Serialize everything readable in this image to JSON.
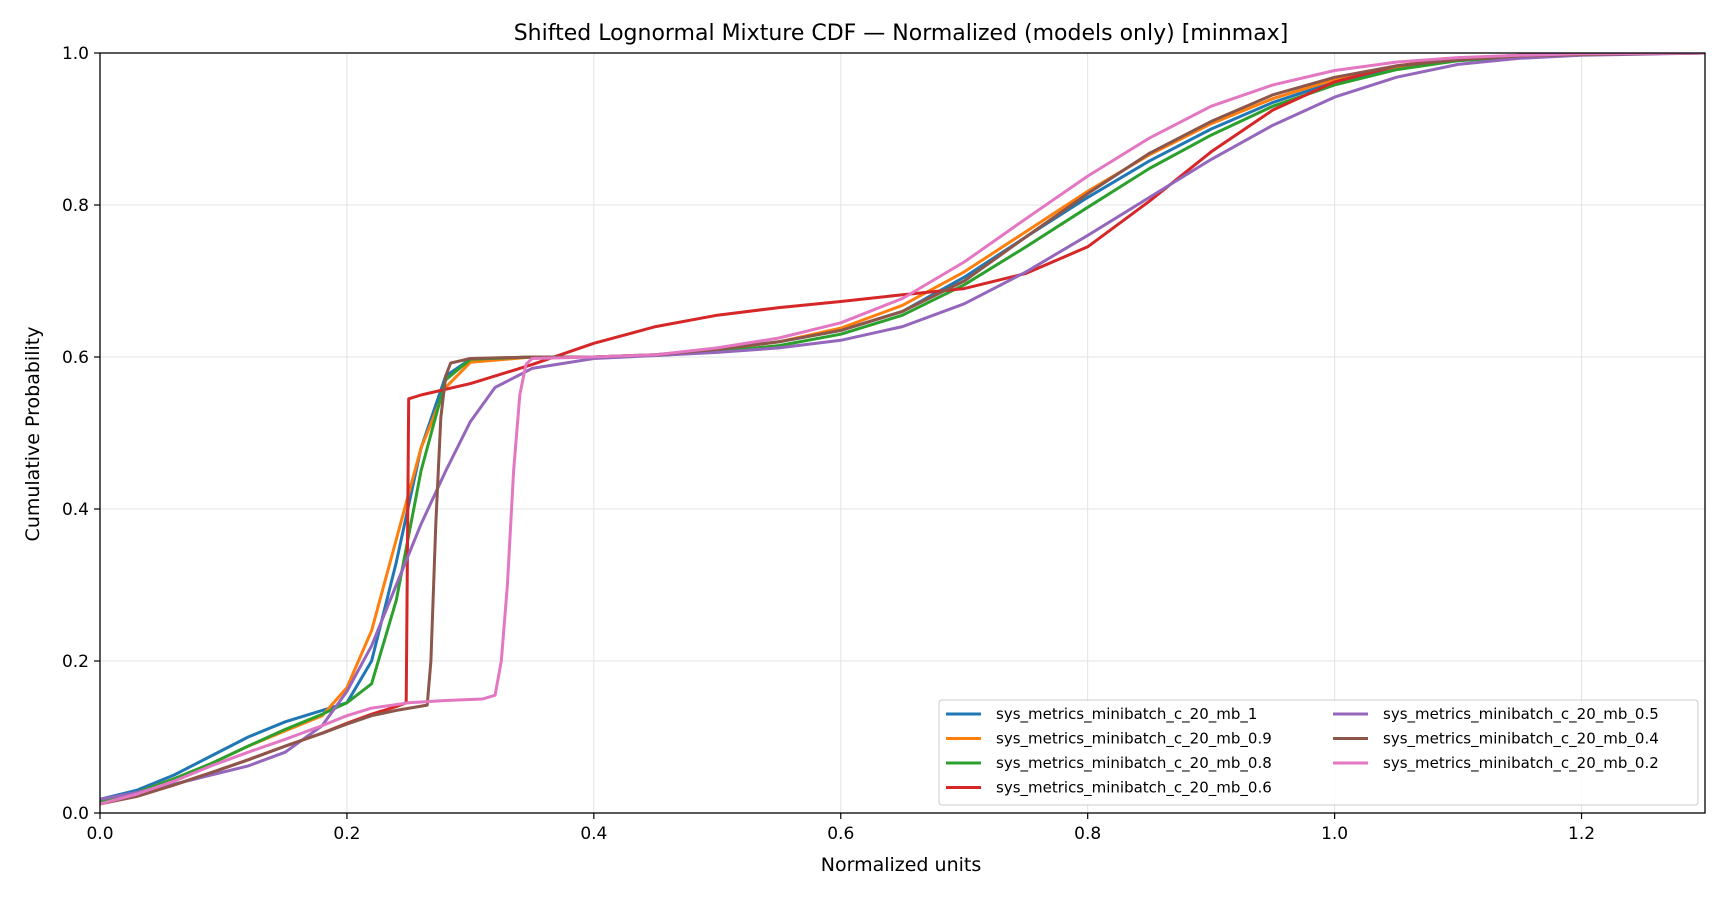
{
  "chart_data": {
    "type": "line",
    "title": "Shifted Lognormal Mixture CDF — Normalized (models only) [minmax]",
    "xlabel": "Normalized units",
    "ylabel": "Cumulative Probability",
    "xlim": [
      0.0,
      1.3
    ],
    "ylim": [
      0.0,
      1.0
    ],
    "xticks": [
      "0.0",
      "0.2",
      "0.4",
      "0.6",
      "0.8",
      "1.0",
      "1.2"
    ],
    "yticks": [
      "0.0",
      "0.2",
      "0.4",
      "0.6",
      "0.8",
      "1.0"
    ],
    "grid": true,
    "legend_position": "lower-right",
    "legend_columns": 2,
    "series": [
      {
        "name": "sys_metrics_minibatch_c_20_mb_1",
        "color": "#1f77b4",
        "points": [
          [
            0.0,
            0.018
          ],
          [
            0.03,
            0.03
          ],
          [
            0.06,
            0.05
          ],
          [
            0.09,
            0.075
          ],
          [
            0.12,
            0.1
          ],
          [
            0.15,
            0.12
          ],
          [
            0.18,
            0.135
          ],
          [
            0.2,
            0.145
          ],
          [
            0.22,
            0.2
          ],
          [
            0.24,
            0.33
          ],
          [
            0.26,
            0.48
          ],
          [
            0.28,
            0.575
          ],
          [
            0.3,
            0.597
          ],
          [
            0.35,
            0.6
          ],
          [
            0.4,
            0.6
          ],
          [
            0.45,
            0.603
          ],
          [
            0.5,
            0.61
          ],
          [
            0.55,
            0.62
          ],
          [
            0.6,
            0.635
          ],
          [
            0.65,
            0.66
          ],
          [
            0.7,
            0.705
          ],
          [
            0.75,
            0.758
          ],
          [
            0.8,
            0.81
          ],
          [
            0.85,
            0.858
          ],
          [
            0.9,
            0.9
          ],
          [
            0.95,
            0.935
          ],
          [
            1.0,
            0.962
          ],
          [
            1.05,
            0.98
          ],
          [
            1.1,
            0.99
          ],
          [
            1.15,
            0.995
          ],
          [
            1.2,
            0.998
          ],
          [
            1.3,
            1.0
          ]
        ]
      },
      {
        "name": "sys_metrics_minibatch_c_20_mb_0.9",
        "color": "#ff7f0e",
        "points": [
          [
            0.0,
            0.015
          ],
          [
            0.03,
            0.027
          ],
          [
            0.06,
            0.045
          ],
          [
            0.09,
            0.065
          ],
          [
            0.12,
            0.088
          ],
          [
            0.15,
            0.108
          ],
          [
            0.18,
            0.128
          ],
          [
            0.2,
            0.165
          ],
          [
            0.22,
            0.24
          ],
          [
            0.24,
            0.36
          ],
          [
            0.26,
            0.48
          ],
          [
            0.28,
            0.56
          ],
          [
            0.3,
            0.593
          ],
          [
            0.35,
            0.6
          ],
          [
            0.4,
            0.6
          ],
          [
            0.45,
            0.603
          ],
          [
            0.5,
            0.61
          ],
          [
            0.55,
            0.62
          ],
          [
            0.6,
            0.638
          ],
          [
            0.65,
            0.668
          ],
          [
            0.7,
            0.712
          ],
          [
            0.75,
            0.765
          ],
          [
            0.8,
            0.818
          ],
          [
            0.85,
            0.866
          ],
          [
            0.9,
            0.907
          ],
          [
            0.95,
            0.94
          ],
          [
            1.0,
            0.965
          ],
          [
            1.05,
            0.982
          ],
          [
            1.1,
            0.991
          ],
          [
            1.15,
            0.996
          ],
          [
            1.2,
            0.998
          ],
          [
            1.3,
            1.0
          ]
        ]
      },
      {
        "name": "sys_metrics_minibatch_c_20_mb_0.8",
        "color": "#2ca02c",
        "points": [
          [
            0.0,
            0.015
          ],
          [
            0.03,
            0.027
          ],
          [
            0.06,
            0.045
          ],
          [
            0.09,
            0.065
          ],
          [
            0.12,
            0.088
          ],
          [
            0.15,
            0.11
          ],
          [
            0.18,
            0.13
          ],
          [
            0.2,
            0.145
          ],
          [
            0.22,
            0.17
          ],
          [
            0.24,
            0.28
          ],
          [
            0.26,
            0.45
          ],
          [
            0.28,
            0.57
          ],
          [
            0.3,
            0.597
          ],
          [
            0.35,
            0.6
          ],
          [
            0.4,
            0.6
          ],
          [
            0.45,
            0.602
          ],
          [
            0.5,
            0.607
          ],
          [
            0.55,
            0.615
          ],
          [
            0.6,
            0.63
          ],
          [
            0.65,
            0.655
          ],
          [
            0.7,
            0.695
          ],
          [
            0.75,
            0.745
          ],
          [
            0.8,
            0.797
          ],
          [
            0.85,
            0.848
          ],
          [
            0.9,
            0.892
          ],
          [
            0.95,
            0.93
          ],
          [
            1.0,
            0.958
          ],
          [
            1.05,
            0.978
          ],
          [
            1.1,
            0.99
          ],
          [
            1.15,
            0.995
          ],
          [
            1.2,
            0.998
          ],
          [
            1.3,
            1.0
          ]
        ]
      },
      {
        "name": "sys_metrics_minibatch_c_20_mb_0.6",
        "color": "#d62728",
        "points": [
          [
            0.0,
            0.012
          ],
          [
            0.03,
            0.022
          ],
          [
            0.06,
            0.037
          ],
          [
            0.09,
            0.053
          ],
          [
            0.12,
            0.07
          ],
          [
            0.15,
            0.088
          ],
          [
            0.18,
            0.105
          ],
          [
            0.2,
            0.118
          ],
          [
            0.22,
            0.13
          ],
          [
            0.24,
            0.14
          ],
          [
            0.248,
            0.145
          ],
          [
            0.25,
            0.545
          ],
          [
            0.26,
            0.55
          ],
          [
            0.3,
            0.565
          ],
          [
            0.35,
            0.59
          ],
          [
            0.4,
            0.618
          ],
          [
            0.45,
            0.64
          ],
          [
            0.5,
            0.655
          ],
          [
            0.55,
            0.665
          ],
          [
            0.6,
            0.673
          ],
          [
            0.65,
            0.682
          ],
          [
            0.7,
            0.69
          ],
          [
            0.75,
            0.71
          ],
          [
            0.8,
            0.745
          ],
          [
            0.85,
            0.805
          ],
          [
            0.9,
            0.87
          ],
          [
            0.95,
            0.925
          ],
          [
            1.0,
            0.962
          ],
          [
            1.05,
            0.983
          ],
          [
            1.1,
            0.993
          ],
          [
            1.15,
            0.997
          ],
          [
            1.2,
            0.999
          ],
          [
            1.3,
            1.0
          ]
        ]
      },
      {
        "name": "sys_metrics_minibatch_c_20_mb_0.5",
        "color": "#9467bd",
        "points": [
          [
            0.0,
            0.018
          ],
          [
            0.03,
            0.027
          ],
          [
            0.06,
            0.038
          ],
          [
            0.09,
            0.05
          ],
          [
            0.12,
            0.062
          ],
          [
            0.15,
            0.08
          ],
          [
            0.18,
            0.115
          ],
          [
            0.2,
            0.16
          ],
          [
            0.22,
            0.22
          ],
          [
            0.24,
            0.3
          ],
          [
            0.26,
            0.38
          ],
          [
            0.28,
            0.45
          ],
          [
            0.3,
            0.515
          ],
          [
            0.32,
            0.56
          ],
          [
            0.35,
            0.585
          ],
          [
            0.4,
            0.598
          ],
          [
            0.45,
            0.602
          ],
          [
            0.5,
            0.606
          ],
          [
            0.55,
            0.612
          ],
          [
            0.6,
            0.622
          ],
          [
            0.65,
            0.64
          ],
          [
            0.7,
            0.67
          ],
          [
            0.75,
            0.712
          ],
          [
            0.8,
            0.76
          ],
          [
            0.85,
            0.81
          ],
          [
            0.9,
            0.86
          ],
          [
            0.95,
            0.905
          ],
          [
            1.0,
            0.942
          ],
          [
            1.05,
            0.968
          ],
          [
            1.1,
            0.985
          ],
          [
            1.15,
            0.993
          ],
          [
            1.2,
            0.997
          ],
          [
            1.3,
            1.0
          ]
        ]
      },
      {
        "name": "sys_metrics_minibatch_c_20_mb_0.4",
        "color": "#8c564b",
        "points": [
          [
            0.0,
            0.012
          ],
          [
            0.03,
            0.022
          ],
          [
            0.06,
            0.037
          ],
          [
            0.09,
            0.053
          ],
          [
            0.12,
            0.07
          ],
          [
            0.15,
            0.088
          ],
          [
            0.18,
            0.105
          ],
          [
            0.2,
            0.117
          ],
          [
            0.22,
            0.128
          ],
          [
            0.24,
            0.135
          ],
          [
            0.265,
            0.142
          ],
          [
            0.268,
            0.2
          ],
          [
            0.272,
            0.38
          ],
          [
            0.276,
            0.52
          ],
          [
            0.28,
            0.575
          ],
          [
            0.284,
            0.592
          ],
          [
            0.3,
            0.598
          ],
          [
            0.35,
            0.6
          ],
          [
            0.4,
            0.6
          ],
          [
            0.45,
            0.603
          ],
          [
            0.5,
            0.61
          ],
          [
            0.55,
            0.62
          ],
          [
            0.6,
            0.635
          ],
          [
            0.65,
            0.66
          ],
          [
            0.7,
            0.7
          ],
          [
            0.75,
            0.758
          ],
          [
            0.8,
            0.815
          ],
          [
            0.85,
            0.868
          ],
          [
            0.9,
            0.91
          ],
          [
            0.95,
            0.945
          ],
          [
            1.0,
            0.968
          ],
          [
            1.05,
            0.983
          ],
          [
            1.1,
            0.991
          ],
          [
            1.15,
            0.996
          ],
          [
            1.2,
            0.998
          ],
          [
            1.3,
            1.0
          ]
        ]
      },
      {
        "name": "sys_metrics_minibatch_c_20_mb_0.2",
        "color": "#e377c2",
        "points": [
          [
            0.0,
            0.012
          ],
          [
            0.03,
            0.025
          ],
          [
            0.06,
            0.042
          ],
          [
            0.09,
            0.062
          ],
          [
            0.12,
            0.08
          ],
          [
            0.15,
            0.097
          ],
          [
            0.18,
            0.115
          ],
          [
            0.2,
            0.128
          ],
          [
            0.22,
            0.138
          ],
          [
            0.25,
            0.145
          ],
          [
            0.28,
            0.148
          ],
          [
            0.31,
            0.15
          ],
          [
            0.32,
            0.155
          ],
          [
            0.325,
            0.2
          ],
          [
            0.33,
            0.3
          ],
          [
            0.335,
            0.45
          ],
          [
            0.34,
            0.55
          ],
          [
            0.345,
            0.59
          ],
          [
            0.35,
            0.598
          ],
          [
            0.4,
            0.6
          ],
          [
            0.45,
            0.603
          ],
          [
            0.5,
            0.612
          ],
          [
            0.55,
            0.625
          ],
          [
            0.6,
            0.645
          ],
          [
            0.65,
            0.677
          ],
          [
            0.7,
            0.725
          ],
          [
            0.75,
            0.782
          ],
          [
            0.8,
            0.838
          ],
          [
            0.85,
            0.888
          ],
          [
            0.9,
            0.93
          ],
          [
            0.95,
            0.958
          ],
          [
            1.0,
            0.977
          ],
          [
            1.05,
            0.988
          ],
          [
            1.1,
            0.994
          ],
          [
            1.15,
            0.997
          ],
          [
            1.2,
            0.999
          ],
          [
            1.3,
            1.0
          ]
        ]
      }
    ]
  }
}
